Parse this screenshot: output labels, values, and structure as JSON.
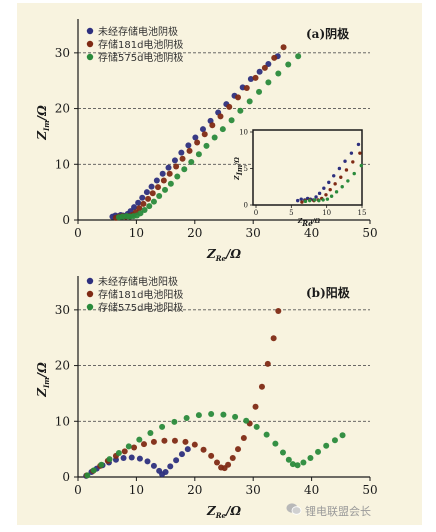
{
  "watermark": {
    "text": "锂电联盟会长",
    "icon": "wechat-icon"
  },
  "colors": {
    "s1": "#2d2f7e",
    "s2": "#7f2a14",
    "s3": "#2a8a3b",
    "axis": "#1a1a1a",
    "grid": "#555555"
  },
  "chart_data": [
    {
      "type": "scatter",
      "title": "(a)阴极",
      "xlabel": "Z_Re/Ω",
      "ylabel": "Z_Im/Ω",
      "xlim": [
        0,
        50
      ],
      "ylim": [
        0,
        35
      ],
      "xticks": [
        "0",
        "10",
        "20",
        "30",
        "40",
        "50"
      ],
      "yticks": [
        "0",
        "10",
        "20",
        "30"
      ],
      "grid": "y-dashed",
      "legend_position": "top-left",
      "series": [
        {
          "name": "未经存储电池阴极",
          "points": [
            [
              5.9,
              0.6
            ],
            [
              6.4,
              0.8
            ],
            [
              6.9,
              0.7
            ],
            [
              7.3,
              0.9
            ],
            [
              7.7,
              0.8
            ],
            [
              8.1,
              0.7
            ],
            [
              8.5,
              1.1
            ],
            [
              9.0,
              1.6
            ],
            [
              9.6,
              2.3
            ],
            [
              10.3,
              3.1
            ],
            [
              11.0,
              4.0
            ],
            [
              11.8,
              5.0
            ],
            [
              12.6,
              6.0
            ],
            [
              13.5,
              7.1
            ],
            [
              14.5,
              8.3
            ],
            [
              15.5,
              9.4
            ],
            [
              16.6,
              10.7
            ],
            [
              17.7,
              12.1
            ],
            [
              18.9,
              13.4
            ],
            [
              20.1,
              14.8
            ],
            [
              21.4,
              16.3
            ],
            [
              22.7,
              17.8
            ],
            [
              24.0,
              19.3
            ],
            [
              25.4,
              20.8
            ],
            [
              26.8,
              22.3
            ],
            [
              28.2,
              23.8
            ],
            [
              29.6,
              25.3
            ],
            [
              31.1,
              26.6
            ],
            [
              32.6,
              28.0
            ],
            [
              34.2,
              29.4
            ]
          ]
        },
        {
          "name": "存储181d电池阴极",
          "points": [
            [
              6.5,
              0.4
            ],
            [
              7.0,
              0.6
            ],
            [
              7.6,
              0.7
            ],
            [
              8.2,
              0.6
            ],
            [
              8.8,
              0.7
            ],
            [
              9.3,
              0.9
            ],
            [
              9.9,
              1.4
            ],
            [
              10.5,
              2.1
            ],
            [
              11.2,
              2.9
            ],
            [
              12.0,
              3.8
            ],
            [
              12.8,
              4.8
            ],
            [
              13.7,
              5.9
            ],
            [
              14.7,
              7.1
            ],
            [
              15.7,
              8.3
            ],
            [
              16.8,
              9.6
            ],
            [
              17.9,
              11.0
            ],
            [
              19.1,
              12.4
            ],
            [
              20.4,
              13.9
            ],
            [
              21.7,
              15.4
            ],
            [
              23.0,
              17.0
            ],
            [
              24.4,
              18.6
            ],
            [
              25.9,
              20.3
            ],
            [
              27.4,
              22.0
            ],
            [
              28.9,
              23.7
            ],
            [
              30.4,
              25.5
            ],
            [
              32.0,
              27.3
            ],
            [
              33.6,
              29.1
            ],
            [
              35.2,
              31.0
            ]
          ]
        },
        {
          "name": "存储575d电池阴极",
          "points": [
            [
              7.0,
              0.5
            ],
            [
              7.6,
              0.6
            ],
            [
              8.3,
              0.7
            ],
            [
              8.9,
              0.6
            ],
            [
              9.5,
              0.7
            ],
            [
              10.1,
              0.8
            ],
            [
              10.7,
              1.2
            ],
            [
              11.4,
              1.8
            ],
            [
              12.2,
              2.5
            ],
            [
              13.0,
              3.3
            ],
            [
              13.9,
              4.3
            ],
            [
              14.9,
              5.4
            ],
            [
              15.9,
              6.5
            ],
            [
              17.0,
              7.8
            ],
            [
              18.2,
              9.1
            ],
            [
              19.4,
              10.4
            ],
            [
              20.7,
              11.8
            ],
            [
              22.0,
              13.3
            ],
            [
              23.4,
              14.8
            ],
            [
              24.8,
              16.3
            ],
            [
              26.3,
              17.9
            ],
            [
              27.8,
              19.6
            ],
            [
              29.4,
              21.3
            ],
            [
              31.0,
              23.0
            ],
            [
              32.6,
              24.7
            ],
            [
              34.3,
              26.3
            ],
            [
              36.0,
              27.9
            ],
            [
              37.7,
              29.4
            ]
          ]
        }
      ],
      "inset": {
        "xlim": [
          0,
          15
        ],
        "ylim": [
          0,
          10
        ],
        "xticks": [
          "0",
          "5",
          "10",
          "15"
        ],
        "yticks": [
          "0",
          "5",
          "10"
        ],
        "xlabel": "Z_Re/Ω",
        "ylabel": "Z_Im/Ω"
      }
    },
    {
      "type": "scatter",
      "title": "(b)阳极",
      "xlabel": "Z_Re/Ω",
      "ylabel": "Z_Im/Ω",
      "xlim": [
        0,
        50
      ],
      "ylim": [
        0,
        35
      ],
      "xticks": [
        "0",
        "10",
        "20",
        "30",
        "40",
        "50"
      ],
      "yticks": [
        "0",
        "10",
        "20",
        "30"
      ],
      "grid": "y-dashed",
      "legend_position": "top-left",
      "series": [
        {
          "name": "未经存储电池阳极",
          "points": [
            [
              1.4,
              0.2
            ],
            [
              2.3,
              0.9
            ],
            [
              3.2,
              1.5
            ],
            [
              4.2,
              2.1
            ],
            [
              5.3,
              2.6
            ],
            [
              6.5,
              3.1
            ],
            [
              7.8,
              3.4
            ],
            [
              9.2,
              3.5
            ],
            [
              10.6,
              3.3
            ],
            [
              11.9,
              2.8
            ],
            [
              13.0,
              2.0
            ],
            [
              13.9,
              1.1
            ],
            [
              14.4,
              0.5
            ],
            [
              15.0,
              0.9
            ],
            [
              15.8,
              1.9
            ],
            [
              16.8,
              3.0
            ],
            [
              17.8,
              4.1
            ],
            [
              18.8,
              5.0
            ]
          ]
        },
        {
          "name": "存储181d电池阳极",
          "points": [
            [
              1.5,
              0.3
            ],
            [
              2.6,
              1.1
            ],
            [
              3.8,
              2.0
            ],
            [
              5.1,
              2.9
            ],
            [
              6.5,
              3.8
            ],
            [
              8.0,
              4.6
            ],
            [
              9.6,
              5.3
            ],
            [
              11.3,
              5.9
            ],
            [
              13.0,
              6.3
            ],
            [
              14.8,
              6.5
            ],
            [
              16.6,
              6.5
            ],
            [
              18.4,
              6.3
            ],
            [
              20.0,
              5.8
            ],
            [
              21.5,
              4.9
            ],
            [
              22.8,
              3.8
            ],
            [
              23.8,
              2.6
            ],
            [
              24.5,
              1.7
            ],
            [
              25.1,
              1.6
            ],
            [
              25.7,
              2.2
            ],
            [
              26.5,
              3.4
            ],
            [
              27.4,
              5.0
            ],
            [
              28.4,
              7.0
            ],
            [
              29.4,
              9.6
            ],
            [
              30.4,
              12.6
            ],
            [
              31.5,
              16.2
            ],
            [
              32.5,
              20.3
            ],
            [
              33.5,
              24.9
            ],
            [
              34.3,
              29.8
            ]
          ]
        },
        {
          "name": "存储575d电池阳极",
          "points": [
            [
              1.6,
              0.3
            ],
            [
              2.7,
              1.2
            ],
            [
              4.0,
              2.2
            ],
            [
              5.4,
              3.2
            ],
            [
              7.0,
              4.3
            ],
            [
              8.7,
              5.5
            ],
            [
              10.5,
              6.7
            ],
            [
              12.4,
              7.9
            ],
            [
              14.4,
              9.0
            ],
            [
              16.5,
              9.9
            ],
            [
              18.6,
              10.6
            ],
            [
              20.7,
              11.1
            ],
            [
              22.8,
              11.3
            ],
            [
              24.9,
              11.2
            ],
            [
              26.9,
              10.8
            ],
            [
              28.8,
              10.1
            ],
            [
              30.6,
              9.0
            ],
            [
              32.3,
              7.6
            ],
            [
              33.8,
              6.0
            ],
            [
              35.1,
              4.4
            ],
            [
              36.1,
              3.1
            ],
            [
              36.8,
              2.3
            ],
            [
              37.6,
              2.1
            ],
            [
              38.6,
              2.6
            ],
            [
              39.8,
              3.4
            ],
            [
              41.1,
              4.5
            ],
            [
              42.5,
              5.6
            ],
            [
              44.0,
              6.6
            ],
            [
              45.3,
              7.5
            ]
          ]
        }
      ]
    }
  ]
}
